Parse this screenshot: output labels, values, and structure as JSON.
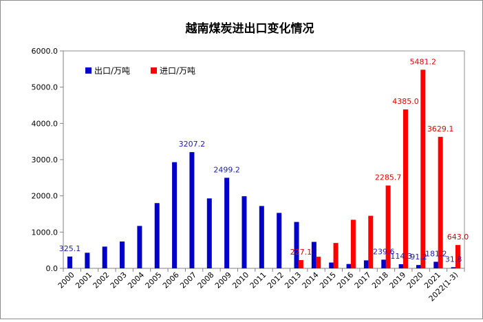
{
  "chart_data": {
    "type": "bar",
    "title": "越南煤炭进出口变化情况",
    "categories": [
      "2000",
      "2001",
      "2002",
      "2003",
      "2004",
      "2005",
      "2006",
      "2007",
      "2008",
      "2009",
      "2010",
      "2011",
      "2012",
      "2013",
      "2014",
      "2015",
      "2016",
      "2017",
      "2018",
      "2019",
      "2020",
      "2021",
      "2022(1-3)"
    ],
    "series": [
      {
        "name": "出口/万吨",
        "color": "#0000c8",
        "values": [
          325.1,
          430,
          600,
          740,
          1170,
          1800,
          2930,
          3207.2,
          1930,
          2499.2,
          1990,
          1720,
          1530,
          1280,
          730,
          160,
          120,
          220,
          239.6,
          114.3,
          91.2,
          181.2,
          31.8
        ]
      },
      {
        "name": "进口/万吨",
        "color": "#ff0000",
        "values": [
          null,
          null,
          null,
          null,
          null,
          null,
          null,
          null,
          null,
          null,
          null,
          null,
          null,
          227.1,
          320,
          700,
          1340,
          1450,
          2285.7,
          4385.0,
          5481.2,
          3629.1,
          643.0
        ]
      }
    ],
    "data_labels": {
      "export": [
        {
          "index": 0,
          "text": "325.1"
        },
        {
          "index": 7,
          "text": "3207.2"
        },
        {
          "index": 9,
          "text": "2499.2"
        },
        {
          "index": 18,
          "text": "239.6"
        },
        {
          "index": 19,
          "text": "114.3"
        },
        {
          "index": 20,
          "text": "91.2"
        },
        {
          "index": 21,
          "text": "181.2"
        },
        {
          "index": 22,
          "text": "31.8"
        }
      ],
      "import": [
        {
          "index": 13,
          "text": "227.1"
        },
        {
          "index": 18,
          "text": "2285.7"
        },
        {
          "index": 19,
          "text": "4385.0"
        },
        {
          "index": 20,
          "text": "5481.2"
        },
        {
          "index": 21,
          "text": "3629.1"
        },
        {
          "index": 22,
          "text": "643.0"
        }
      ]
    },
    "ylim": [
      0,
      6000
    ],
    "yticks": [
      "0.0",
      "1000.0",
      "2000.0",
      "3000.0",
      "4000.0",
      "5000.0",
      "6000.0"
    ],
    "ytick_values": [
      0,
      1000,
      2000,
      3000,
      4000,
      5000,
      6000
    ],
    "grid": false,
    "legend_position": "top-left"
  }
}
